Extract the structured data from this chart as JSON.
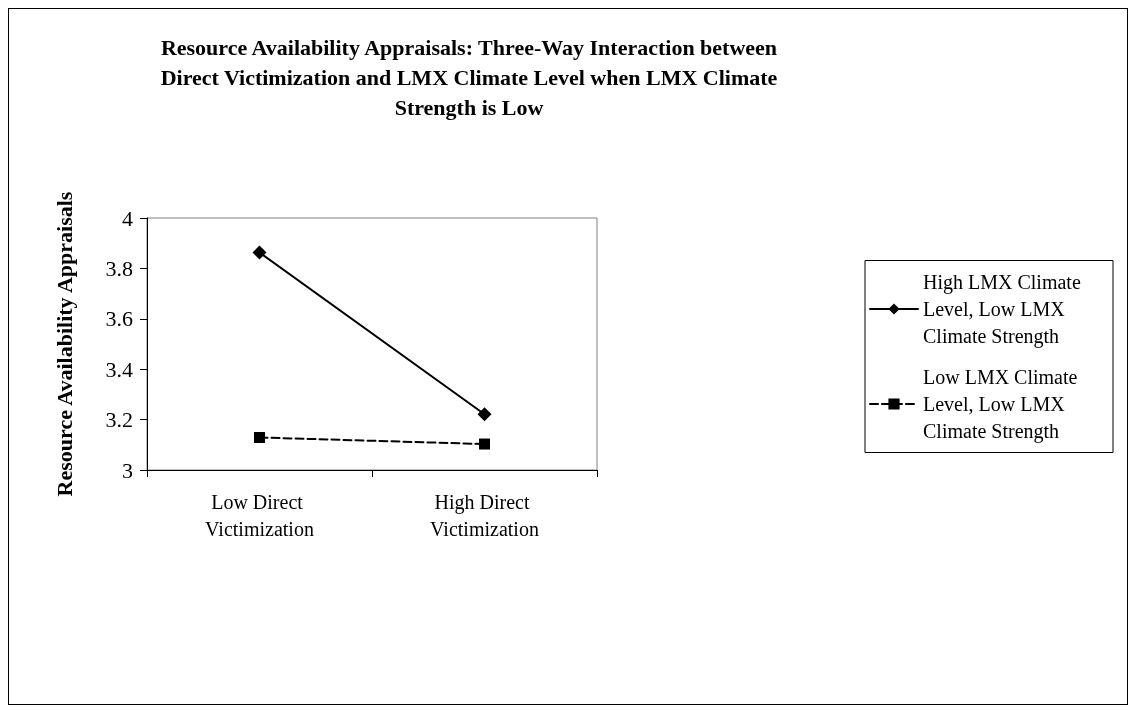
{
  "chart_data": {
    "type": "line",
    "title": "Resource Availability Appraisals: Three-Way Interaction between Direct Victimization and LMX Climate Level when LMX Climate Strength is Low",
    "ylabel": "Resource Availability Appraisals",
    "categories": [
      "Low Direct Victimization",
      "High Direct Victimization"
    ],
    "series": [
      {
        "name": "High LMX Climate Level, Low LMX Climate Strength",
        "color": "#000000",
        "values": [
          3.863,
          3.221
        ],
        "marker": "diamond",
        "line_style": "solid"
      },
      {
        "name": "Low LMX Climate Level, Low LMX Climate Strength",
        "color": "#000000",
        "values": [
          3.129,
          3.103
        ],
        "marker": "square",
        "line_style": "dashed"
      }
    ],
    "ylim": [
      3,
      4
    ],
    "yticks": [
      3,
      3.2,
      3.4,
      3.6,
      3.8,
      4
    ],
    "grid": false,
    "legend": "right"
  }
}
